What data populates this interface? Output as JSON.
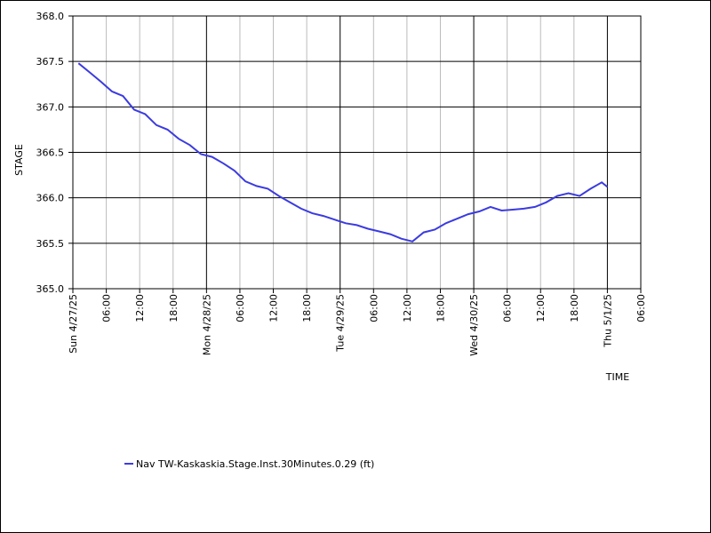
{
  "chart_data": {
    "type": "line",
    "ylabel": "STAGE",
    "xlabel": "TIME",
    "x": [
      "2025-04-27T01:00",
      "2025-04-27T03:00",
      "2025-04-27T05:00",
      "2025-04-27T07:00",
      "2025-04-27T09:00",
      "2025-04-27T11:00",
      "2025-04-27T13:00",
      "2025-04-27T15:00",
      "2025-04-27T17:00",
      "2025-04-27T19:00",
      "2025-04-27T21:00",
      "2025-04-27T23:00",
      "2025-04-28T01:00",
      "2025-04-28T03:00",
      "2025-04-28T05:00",
      "2025-04-28T07:00",
      "2025-04-28T09:00",
      "2025-04-28T11:00",
      "2025-04-28T13:00",
      "2025-04-28T15:00",
      "2025-04-28T17:00",
      "2025-04-28T19:00",
      "2025-04-28T21:00",
      "2025-04-28T23:00",
      "2025-04-29T01:00",
      "2025-04-29T03:00",
      "2025-04-29T05:00",
      "2025-04-29T07:00",
      "2025-04-29T09:00",
      "2025-04-29T11:00",
      "2025-04-29T13:00",
      "2025-04-29T15:00",
      "2025-04-29T17:00",
      "2025-04-29T19:00",
      "2025-04-29T21:00",
      "2025-04-29T23:00",
      "2025-04-30T01:00",
      "2025-04-30T03:00",
      "2025-04-30T05:00",
      "2025-04-30T07:00",
      "2025-04-30T09:00",
      "2025-04-30T11:00",
      "2025-04-30T13:00",
      "2025-04-30T15:00",
      "2025-04-30T17:00",
      "2025-04-30T19:00",
      "2025-04-30T21:00",
      "2025-04-30T23:00",
      "2025-05-01T00:00"
    ],
    "series": [
      {
        "name": "Nav TW-Kaskaskia.Stage.Inst.30Minutes.0.29 (ft)",
        "color": "#3b3be0",
        "values": [
          367.48,
          367.38,
          367.28,
          367.17,
          367.12,
          366.97,
          366.92,
          366.8,
          366.75,
          366.65,
          366.58,
          366.48,
          366.45,
          366.38,
          366.3,
          366.18,
          366.13,
          366.1,
          366.02,
          365.95,
          365.88,
          365.83,
          365.8,
          365.76,
          365.72,
          365.7,
          365.66,
          365.63,
          365.6,
          365.55,
          365.52,
          365.62,
          365.65,
          365.72,
          365.77,
          365.82,
          365.85,
          365.9,
          365.86,
          365.87,
          365.88,
          365.9,
          365.95,
          366.02,
          366.05,
          366.02,
          366.1,
          366.17,
          366.12
        ]
      }
    ],
    "ylim": [
      365.0,
      368.0
    ],
    "yticks": [
      {
        "value": 365.0,
        "label": "365.0"
      },
      365.5,
      {
        "value": 366.0,
        "label": "366.0"
      },
      366.5,
      {
        "value": 367.0,
        "label": "367.0"
      },
      367.5,
      {
        "value": 368.0,
        "label": "368.0"
      }
    ],
    "xlim": [
      "2025-04-27T00:00",
      "2025-05-01T06:00"
    ],
    "xticks": [
      {
        "value": "2025-04-27T00:00",
        "label": "Sun 4/27/25"
      },
      {
        "value": "2025-04-27T06:00",
        "label": "06:00"
      },
      {
        "value": "2025-04-27T12:00",
        "label": "12:00"
      },
      {
        "value": "2025-04-27T18:00",
        "label": "18:00"
      },
      {
        "value": "2025-04-28T00:00",
        "label": "Mon 4/28/25"
      },
      {
        "value": "2025-04-28T06:00",
        "label": "06:00"
      },
      {
        "value": "2025-04-28T12:00",
        "label": "12:00"
      },
      {
        "value": "2025-04-28T18:00",
        "label": "18:00"
      },
      {
        "value": "2025-04-29T00:00",
        "label": "Tue 4/29/25"
      },
      {
        "value": "2025-04-29T06:00",
        "label": "06:00"
      },
      {
        "value": "2025-04-29T12:00",
        "label": "12:00"
      },
      {
        "value": "2025-04-29T18:00",
        "label": "18:00"
      },
      {
        "value": "2025-04-30T00:00",
        "label": "Wed 4/30/25"
      },
      {
        "value": "2025-04-30T06:00",
        "label": "06:00"
      },
      {
        "value": "2025-04-30T12:00",
        "label": "12:00"
      },
      {
        "value": "2025-04-30T18:00",
        "label": "18:00"
      },
      {
        "value": "2025-05-01T00:00",
        "label": "Thu 5/1/25"
      },
      {
        "value": "2025-05-01T06:00",
        "label": "06:00"
      }
    ],
    "grid": true
  }
}
